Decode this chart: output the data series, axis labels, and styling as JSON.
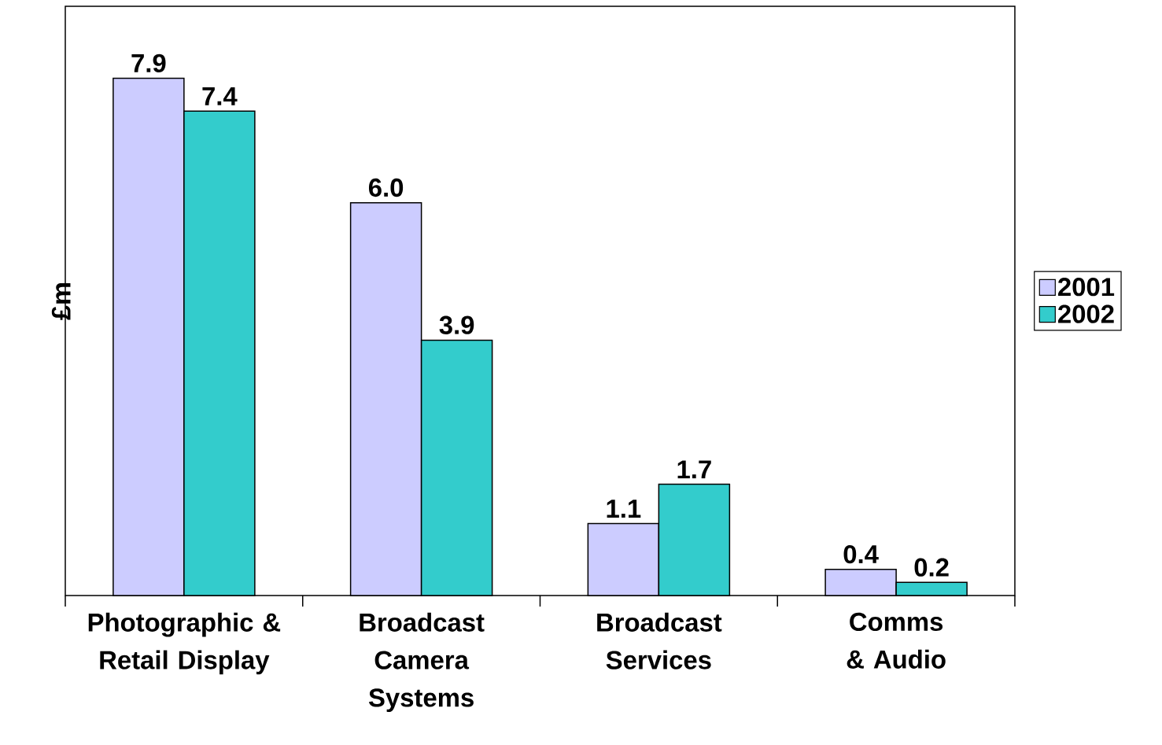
{
  "chart_data": {
    "type": "bar",
    "ylabel": "£m",
    "categories": [
      "Photographic & Retail Display",
      "Broadcast Camera Systems",
      "Broadcast Services",
      "Comms & Audio"
    ],
    "series": [
      {
        "name": "2001",
        "color": "#ccccff",
        "values": [
          7.9,
          6.0,
          1.1,
          0.4
        ],
        "value_labels": [
          "7.9",
          "6.0",
          "1.1",
          "0.4"
        ]
      },
      {
        "name": "2002",
        "color": "#33cccc",
        "values": [
          7.4,
          3.9,
          1.7,
          0.2
        ],
        "value_labels": [
          "7.4",
          "3.9",
          "1.7",
          "0.2"
        ]
      }
    ],
    "ylim": [
      0,
      9
    ],
    "legend": "right",
    "tick_labels": "x",
    "grid": false
  }
}
